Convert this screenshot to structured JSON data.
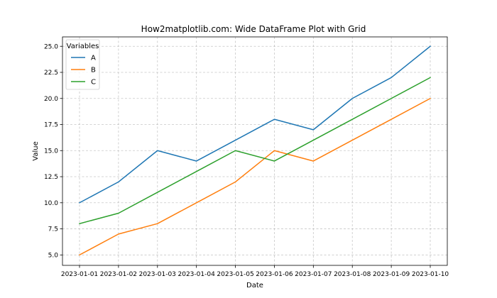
{
  "chart_data": {
    "type": "line",
    "title": "How2matplotlib.com: Wide DataFrame Plot with Grid",
    "xlabel": "Date",
    "ylabel": "Value",
    "x": [
      "2023-01-01",
      "2023-01-02",
      "2023-01-03",
      "2023-01-04",
      "2023-01-05",
      "2023-01-06",
      "2023-01-07",
      "2023-01-08",
      "2023-01-09",
      "2023-01-10"
    ],
    "ylim": [
      4.0,
      25.9
    ],
    "yticks": [
      5.0,
      7.5,
      10.0,
      12.5,
      15.0,
      17.5,
      20.0,
      22.5,
      25.0
    ],
    "ytick_labels": [
      "5.0",
      "7.5",
      "10.0",
      "12.5",
      "15.0",
      "17.5",
      "20.0",
      "22.5",
      "25.0"
    ],
    "grid": true,
    "legend": {
      "title": "Variables",
      "placement": "top-left"
    },
    "series": [
      {
        "name": "A",
        "color": "#1f77b4",
        "values": [
          10,
          12,
          15,
          14,
          16,
          18,
          17,
          20,
          22,
          25
        ]
      },
      {
        "name": "B",
        "color": "#ff7f0e",
        "values": [
          5,
          7,
          8,
          10,
          12,
          15,
          14,
          16,
          18,
          20
        ]
      },
      {
        "name": "C",
        "color": "#2ca02c",
        "values": [
          8,
          9,
          11,
          13,
          15,
          14,
          16,
          18,
          20,
          22
        ]
      }
    ]
  }
}
